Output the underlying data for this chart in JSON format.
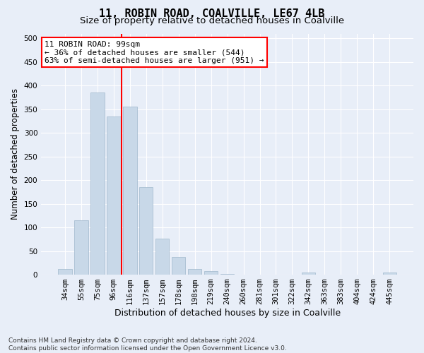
{
  "title": "11, ROBIN ROAD, COALVILLE, LE67 4LB",
  "subtitle": "Size of property relative to detached houses in Coalville",
  "xlabel": "Distribution of detached houses by size in Coalville",
  "ylabel": "Number of detached properties",
  "categories": [
    "34sqm",
    "55sqm",
    "75sqm",
    "96sqm",
    "116sqm",
    "137sqm",
    "157sqm",
    "178sqm",
    "198sqm",
    "219sqm",
    "240sqm",
    "260sqm",
    "281sqm",
    "301sqm",
    "322sqm",
    "342sqm",
    "363sqm",
    "383sqm",
    "404sqm",
    "424sqm",
    "445sqm"
  ],
  "values": [
    12,
    115,
    385,
    335,
    355,
    186,
    76,
    38,
    12,
    7,
    2,
    0,
    0,
    0,
    0,
    4,
    0,
    0,
    0,
    0,
    4
  ],
  "bar_color": "#c8d8e8",
  "bar_edgecolor": "#a0b8cc",
  "vline_x": 3.5,
  "vline_color": "red",
  "annotation_text": "11 ROBIN ROAD: 99sqm\n← 36% of detached houses are smaller (544)\n63% of semi-detached houses are larger (951) →",
  "annotation_box_color": "white",
  "annotation_box_edgecolor": "red",
  "ylim": [
    0,
    510
  ],
  "yticks": [
    0,
    50,
    100,
    150,
    200,
    250,
    300,
    350,
    400,
    450,
    500
  ],
  "footnote": "Contains HM Land Registry data © Crown copyright and database right 2024.\nContains public sector information licensed under the Open Government Licence v3.0.",
  "background_color": "#e8eef8",
  "grid_color": "white",
  "title_fontsize": 11,
  "subtitle_fontsize": 9.5,
  "ylabel_fontsize": 8.5,
  "xlabel_fontsize": 9,
  "tick_fontsize": 7.5,
  "annotation_fontsize": 8,
  "footnote_fontsize": 6.5
}
